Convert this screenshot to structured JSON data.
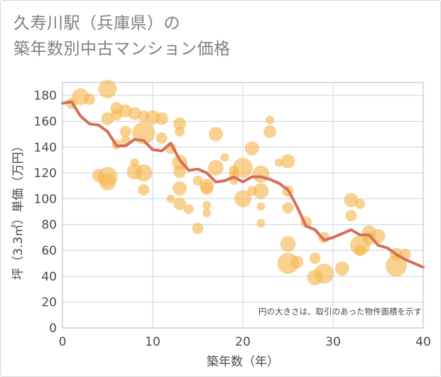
{
  "title": {
    "line1": "久寿川駅（兵庫県）の",
    "line2": "築年数別中古マンション価格"
  },
  "note": "円の大きさは、取引のあった物件面積を示す",
  "chart_data": {
    "type": "scatter",
    "xlabel": "築年数（年）",
    "ylabel": "坪（3.3㎡）単価（万円）",
    "xlim": [
      0,
      40
    ],
    "ylim": [
      0,
      190
    ],
    "xticks": [
      0,
      10,
      20,
      30,
      40
    ],
    "yticks": [
      0,
      20,
      40,
      60,
      80,
      100,
      120,
      140,
      160,
      180
    ],
    "grid": true,
    "colors": {
      "bubble": "#f5b74e",
      "line": "#d4705a",
      "grid": "#c6d4e2",
      "axis": "#b0b8c1"
    },
    "points": [
      {
        "x": 1,
        "y": 174,
        "s": 8
      },
      {
        "x": 2,
        "y": 179,
        "s": 12
      },
      {
        "x": 3,
        "y": 177,
        "s": 8
      },
      {
        "x": 4,
        "y": 118,
        "s": 9
      },
      {
        "x": 5,
        "y": 185,
        "s": 13
      },
      {
        "x": 5,
        "y": 162,
        "s": 9
      },
      {
        "x": 5,
        "y": 117,
        "s": 14
      },
      {
        "x": 5,
        "y": 113,
        "s": 12
      },
      {
        "x": 6,
        "y": 170,
        "s": 9
      },
      {
        "x": 6,
        "y": 165,
        "s": 8
      },
      {
        "x": 6,
        "y": 142,
        "s": 7
      },
      {
        "x": 7,
        "y": 168,
        "s": 9
      },
      {
        "x": 7,
        "y": 152,
        "s": 8
      },
      {
        "x": 7,
        "y": 145,
        "s": 7
      },
      {
        "x": 8,
        "y": 166,
        "s": 9
      },
      {
        "x": 8,
        "y": 128,
        "s": 6
      },
      {
        "x": 8,
        "y": 121,
        "s": 11
      },
      {
        "x": 9,
        "y": 164,
        "s": 8
      },
      {
        "x": 9,
        "y": 151,
        "s": 16
      },
      {
        "x": 9,
        "y": 120,
        "s": 12
      },
      {
        "x": 9,
        "y": 107,
        "s": 8
      },
      {
        "x": 10,
        "y": 163,
        "s": 10
      },
      {
        "x": 11,
        "y": 162,
        "s": 9
      },
      {
        "x": 11,
        "y": 147,
        "s": 8
      },
      {
        "x": 12,
        "y": 139,
        "s": 8
      },
      {
        "x": 12,
        "y": 100,
        "s": 6
      },
      {
        "x": 13,
        "y": 158,
        "s": 9
      },
      {
        "x": 13,
        "y": 152,
        "s": 7
      },
      {
        "x": 13,
        "y": 128,
        "s": 11
      },
      {
        "x": 13,
        "y": 121,
        "s": 9
      },
      {
        "x": 13,
        "y": 108,
        "s": 10
      },
      {
        "x": 13,
        "y": 96,
        "s": 9
      },
      {
        "x": 14,
        "y": 92,
        "s": 7
      },
      {
        "x": 15,
        "y": 114,
        "s": 7
      },
      {
        "x": 15,
        "y": 77,
        "s": 8
      },
      {
        "x": 16,
        "y": 110,
        "s": 10
      },
      {
        "x": 16,
        "y": 108,
        "s": 9
      },
      {
        "x": 16,
        "y": 95,
        "s": 6
      },
      {
        "x": 16,
        "y": 89,
        "s": 6
      },
      {
        "x": 17,
        "y": 150,
        "s": 10
      },
      {
        "x": 17,
        "y": 124,
        "s": 11
      },
      {
        "x": 18,
        "y": 132,
        "s": 6
      },
      {
        "x": 19,
        "y": 122,
        "s": 7
      },
      {
        "x": 19,
        "y": 118,
        "s": 7
      },
      {
        "x": 19,
        "y": 114,
        "s": 6
      },
      {
        "x": 20,
        "y": 124,
        "s": 14
      },
      {
        "x": 20,
        "y": 100,
        "s": 12
      },
      {
        "x": 21,
        "y": 139,
        "s": 10
      },
      {
        "x": 21,
        "y": 106,
        "s": 7
      },
      {
        "x": 22,
        "y": 119,
        "s": 12
      },
      {
        "x": 22,
        "y": 106,
        "s": 11
      },
      {
        "x": 22,
        "y": 94,
        "s": 6
      },
      {
        "x": 22,
        "y": 81,
        "s": 6
      },
      {
        "x": 23,
        "y": 161,
        "s": 6
      },
      {
        "x": 23,
        "y": 152,
        "s": 9
      },
      {
        "x": 24,
        "y": 128,
        "s": 6
      },
      {
        "x": 25,
        "y": 129,
        "s": 10
      },
      {
        "x": 25,
        "y": 106,
        "s": 8
      },
      {
        "x": 25,
        "y": 93,
        "s": 8
      },
      {
        "x": 25,
        "y": 65,
        "s": 11
      },
      {
        "x": 25,
        "y": 50,
        "s": 15
      },
      {
        "x": 26,
        "y": 51,
        "s": 9
      },
      {
        "x": 27,
        "y": 82,
        "s": 8
      },
      {
        "x": 28,
        "y": 54,
        "s": 8
      },
      {
        "x": 28,
        "y": 39,
        "s": 11
      },
      {
        "x": 29,
        "y": 70,
        "s": 8
      },
      {
        "x": 29,
        "y": 42,
        "s": 14
      },
      {
        "x": 31,
        "y": 46,
        "s": 10
      },
      {
        "x": 32,
        "y": 99,
        "s": 10
      },
      {
        "x": 32,
        "y": 87,
        "s": 8
      },
      {
        "x": 33,
        "y": 96,
        "s": 7
      },
      {
        "x": 33,
        "y": 64,
        "s": 14
      },
      {
        "x": 33,
        "y": 60,
        "s": 8
      },
      {
        "x": 34,
        "y": 74,
        "s": 10
      },
      {
        "x": 34,
        "y": 69,
        "s": 9
      },
      {
        "x": 35,
        "y": 71,
        "s": 10
      },
      {
        "x": 37,
        "y": 57,
        "s": 9
      },
      {
        "x": 37,
        "y": 48,
        "s": 15
      },
      {
        "x": 38,
        "y": 57,
        "s": 8
      }
    ],
    "trend": {
      "x": [
        0,
        1,
        2,
        3,
        4,
        5,
        6,
        7,
        8,
        9,
        10,
        11,
        12,
        13,
        14,
        15,
        16,
        17,
        18,
        19,
        20,
        21,
        22,
        23,
        24,
        25,
        26,
        27,
        28,
        29,
        30,
        31,
        32,
        33,
        34,
        35,
        36,
        37,
        38,
        39,
        40
      ],
      "y": [
        174,
        175,
        164,
        158,
        157,
        152,
        141,
        141,
        146,
        145,
        138,
        137,
        143,
        130,
        122,
        123,
        120,
        113,
        114,
        117,
        113,
        117,
        117,
        115,
        112,
        107,
        94,
        79,
        76,
        68,
        70,
        73,
        76,
        72,
        72,
        64,
        62,
        57,
        53,
        50,
        47
      ]
    }
  }
}
